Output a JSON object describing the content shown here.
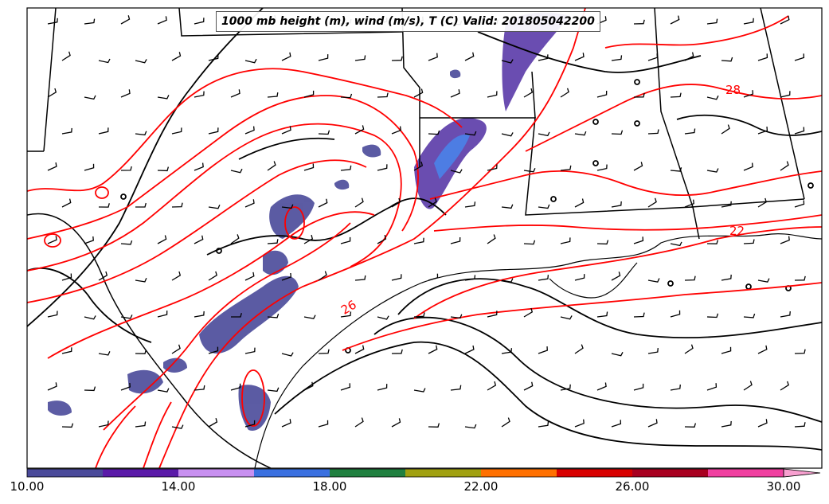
{
  "title": "1000 mb height (m), wind (m/s), T (C) Valid: 201805042200",
  "colorbar": {
    "labels": [
      "10.00",
      "14.00",
      "18.00",
      "22.00",
      "26.00",
      "30.00"
    ],
    "colors": [
      "#4a4a9a",
      "#5a1aa8",
      "#c890f0",
      "#3a70e0",
      "#208040",
      "#a0a010",
      "#ff7000",
      "#d80000",
      "#a80020",
      "#f040a0",
      "#f8a0d0"
    ]
  },
  "contour_labels": [
    "26",
    "28",
    "22"
  ],
  "colors": {
    "temperature_contour": "#ff0000",
    "height_contour": "#000000",
    "land": "#ffffff"
  }
}
